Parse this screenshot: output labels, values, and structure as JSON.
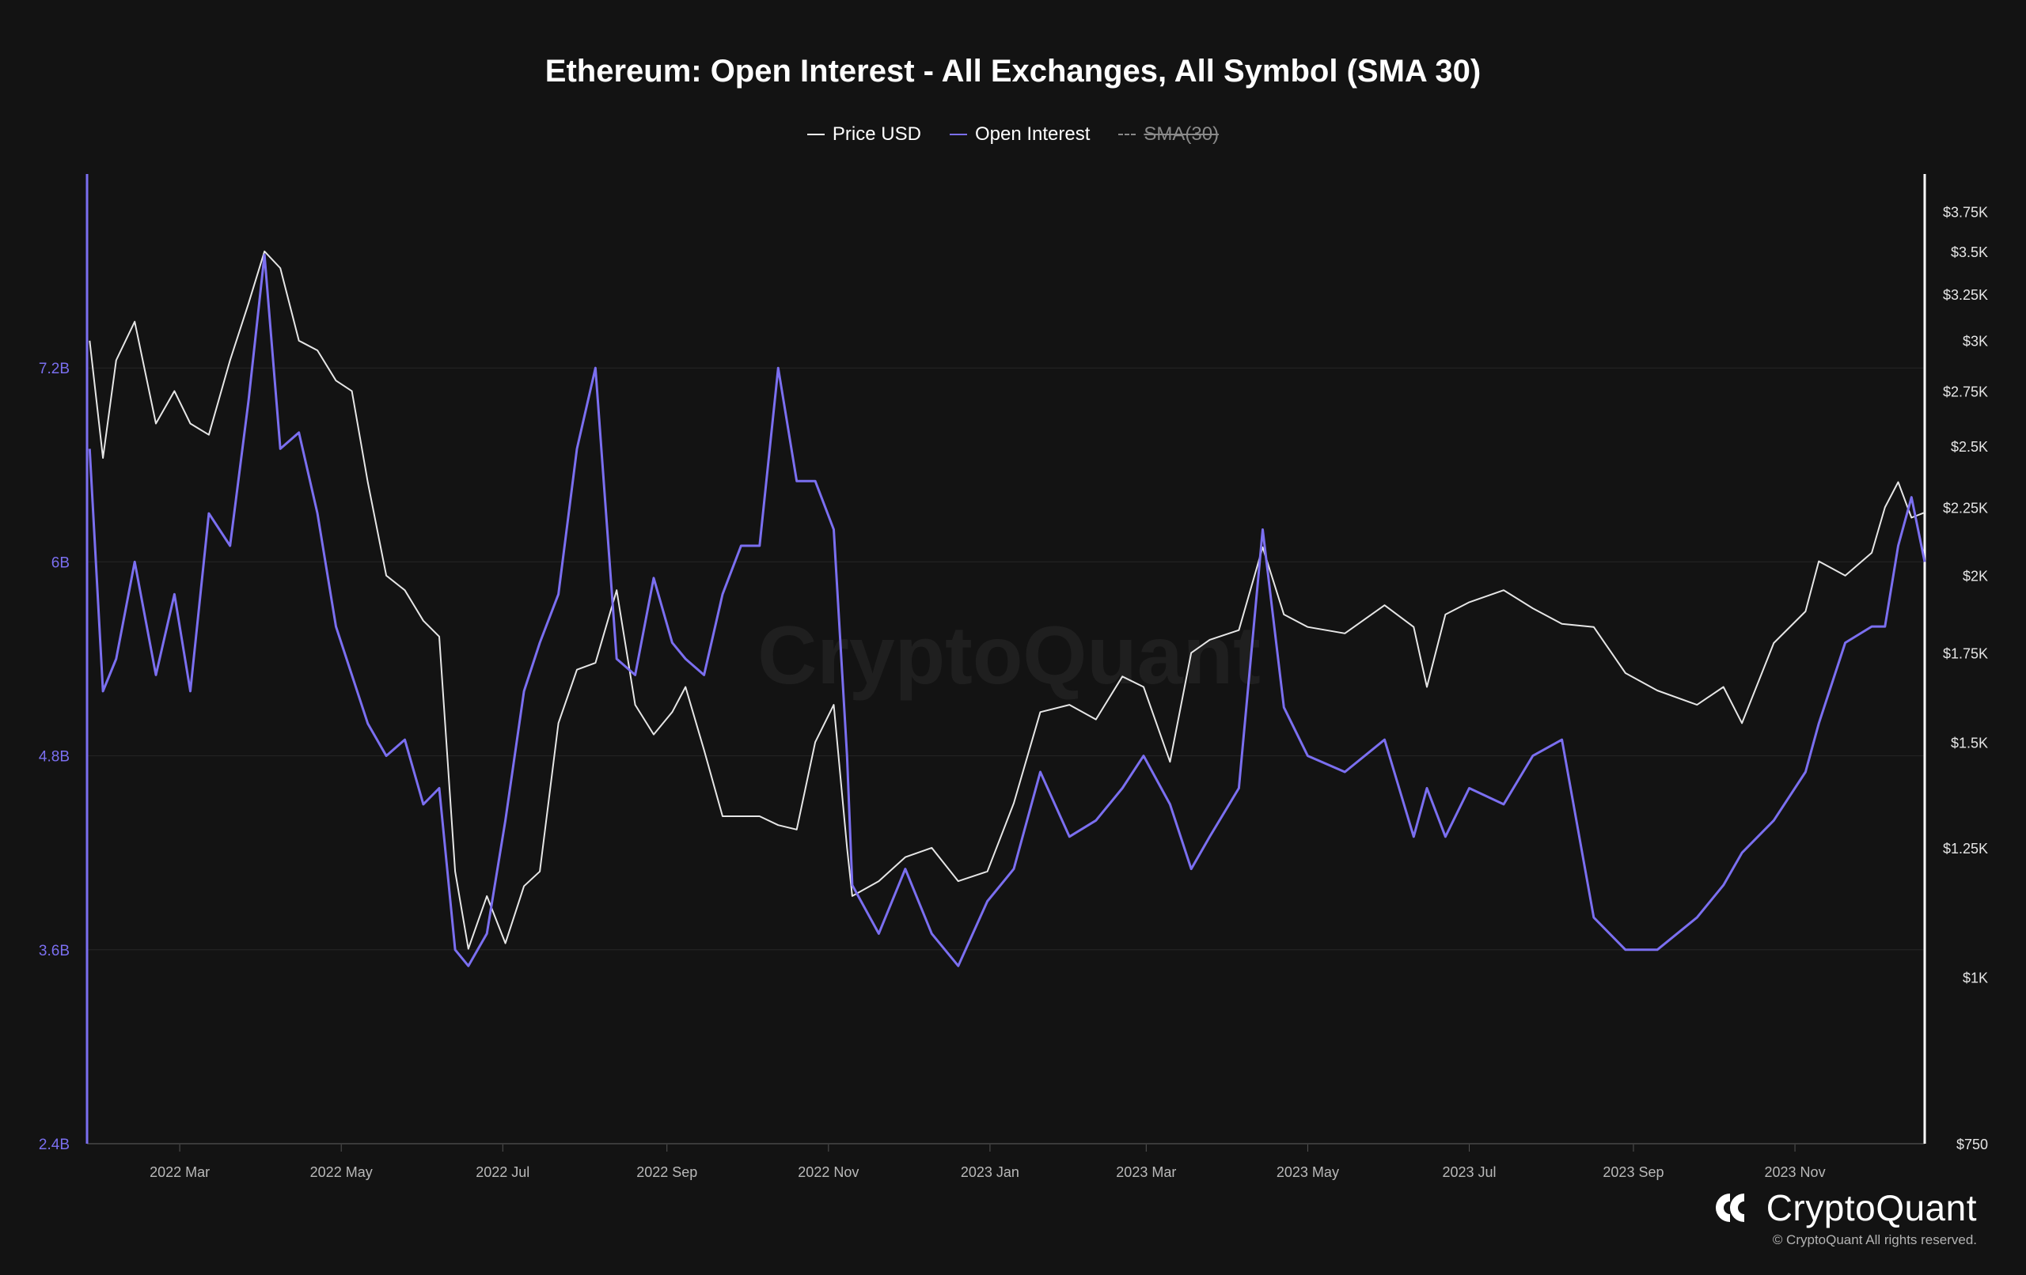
{
  "chart_data": {
    "type": "line",
    "title": "Ethereum: Open Interest - All Exchanges, All Symbol (SMA 30)",
    "legend": [
      {
        "label": "Price USD",
        "color": "#e6e6e6",
        "enabled": true
      },
      {
        "label": "Open Interest",
        "color": "#7b6ff0",
        "enabled": true
      },
      {
        "label": "SMA(30)",
        "color": "#8a8a8a",
        "enabled": false
      }
    ],
    "legend_position": "top-center",
    "x_range": [
      "2022-01-25",
      "2023-12-20"
    ],
    "x_ticks": [
      {
        "date": "2022-03-01",
        "label": "2022 Mar"
      },
      {
        "date": "2022-05-01",
        "label": "2022 May"
      },
      {
        "date": "2022-07-01",
        "label": "2022 Jul"
      },
      {
        "date": "2022-09-01",
        "label": "2022 Sep"
      },
      {
        "date": "2022-11-01",
        "label": "2022 Nov"
      },
      {
        "date": "2023-01-01",
        "label": "2023 Jan"
      },
      {
        "date": "2023-03-01",
        "label": "2023 Mar"
      },
      {
        "date": "2023-05-01",
        "label": "2023 May"
      },
      {
        "date": "2023-07-01",
        "label": "2023 Jul"
      },
      {
        "date": "2023-09-01",
        "label": "2023 Sep"
      },
      {
        "date": "2023-11-01",
        "label": "2023 Nov"
      }
    ],
    "y_left": {
      "scale": "linear",
      "min": 2.4,
      "max": 8.4,
      "unit": "B",
      "ticks": [
        {
          "value": 2.4,
          "label": "2.4B"
        },
        {
          "value": 3.6,
          "label": "3.6B"
        },
        {
          "value": 4.8,
          "label": "4.8B"
        },
        {
          "value": 6.0,
          "label": "6B"
        },
        {
          "value": 7.2,
          "label": "7.2B"
        }
      ]
    },
    "y_right": {
      "scale": "log",
      "min": 750,
      "max": 4000,
      "ticks": [
        {
          "value": 750,
          "label": "$750"
        },
        {
          "value": 1000,
          "label": "$1K"
        },
        {
          "value": 1250,
          "label": "$1.25K"
        },
        {
          "value": 1500,
          "label": "$1.5K"
        },
        {
          "value": 1750,
          "label": "$1.75K"
        },
        {
          "value": 2000,
          "label": "$2K"
        },
        {
          "value": 2250,
          "label": "$2.25K"
        },
        {
          "value": 2500,
          "label": "$2.5K"
        },
        {
          "value": 2750,
          "label": "$2.75K"
        },
        {
          "value": 3000,
          "label": "$3K"
        },
        {
          "value": 3250,
          "label": "$3.25K"
        },
        {
          "value": 3500,
          "label": "$3.5K"
        },
        {
          "value": 3750,
          "label": "$3.75K"
        }
      ]
    },
    "grid": true,
    "series": [
      {
        "name": "Price USD",
        "axis": "right",
        "color": "#e6e6e6",
        "x": [
          "2022-01-26",
          "2022-01-31",
          "2022-02-05",
          "2022-02-12",
          "2022-02-20",
          "2022-02-27",
          "2022-03-05",
          "2022-03-12",
          "2022-03-20",
          "2022-03-27",
          "2022-04-02",
          "2022-04-08",
          "2022-04-15",
          "2022-04-22",
          "2022-04-29",
          "2022-05-05",
          "2022-05-11",
          "2022-05-18",
          "2022-05-25",
          "2022-06-01",
          "2022-06-07",
          "2022-06-13",
          "2022-06-18",
          "2022-06-25",
          "2022-07-02",
          "2022-07-09",
          "2022-07-15",
          "2022-07-22",
          "2022-07-29",
          "2022-08-05",
          "2022-08-13",
          "2022-08-20",
          "2022-08-27",
          "2022-09-03",
          "2022-09-08",
          "2022-09-15",
          "2022-09-22",
          "2022-09-29",
          "2022-10-06",
          "2022-10-13",
          "2022-10-20",
          "2022-10-27",
          "2022-11-03",
          "2022-11-08",
          "2022-11-10",
          "2022-11-20",
          "2022-11-30",
          "2022-12-10",
          "2022-12-20",
          "2022-12-31",
          "2023-01-10",
          "2023-01-20",
          "2023-01-31",
          "2023-02-10",
          "2023-02-20",
          "2023-02-28",
          "2023-03-10",
          "2023-03-18",
          "2023-03-25",
          "2023-04-05",
          "2023-04-14",
          "2023-04-22",
          "2023-05-01",
          "2023-05-15",
          "2023-05-30",
          "2023-06-10",
          "2023-06-15",
          "2023-06-22",
          "2023-07-01",
          "2023-07-14",
          "2023-07-25",
          "2023-08-05",
          "2023-08-17",
          "2023-08-29",
          "2023-09-10",
          "2023-09-25",
          "2023-10-05",
          "2023-10-12",
          "2023-10-24",
          "2023-11-05",
          "2023-11-10",
          "2023-11-20",
          "2023-11-30",
          "2023-12-05",
          "2023-12-10",
          "2023-12-15",
          "2023-12-20"
        ],
        "values": [
          3000,
          2450,
          2900,
          3100,
          2600,
          2750,
          2600,
          2550,
          2900,
          3200,
          3500,
          3400,
          3000,
          2950,
          2800,
          2750,
          2350,
          2000,
          1950,
          1850,
          1800,
          1200,
          1050,
          1150,
          1060,
          1170,
          1200,
          1550,
          1700,
          1720,
          1950,
          1600,
          1520,
          1580,
          1650,
          1480,
          1320,
          1320,
          1320,
          1300,
          1290,
          1500,
          1600,
          1250,
          1150,
          1180,
          1230,
          1250,
          1180,
          1200,
          1350,
          1580,
          1600,
          1560,
          1680,
          1650,
          1450,
          1750,
          1790,
          1820,
          2100,
          1870,
          1830,
          1810,
          1900,
          1830,
          1650,
          1870,
          1910,
          1950,
          1890,
          1840,
          1830,
          1690,
          1640,
          1600,
          1650,
          1550,
          1780,
          1880,
          2050,
          2000,
          2080,
          2250,
          2350,
          2210,
          2230
        ]
      },
      {
        "name": "Open Interest",
        "axis": "left",
        "color": "#7b6ff0",
        "x": [
          "2022-01-26",
          "2022-01-31",
          "2022-02-05",
          "2022-02-12",
          "2022-02-20",
          "2022-02-27",
          "2022-03-05",
          "2022-03-12",
          "2022-03-20",
          "2022-03-27",
          "2022-04-02",
          "2022-04-08",
          "2022-04-15",
          "2022-04-22",
          "2022-04-29",
          "2022-05-05",
          "2022-05-11",
          "2022-05-18",
          "2022-05-25",
          "2022-06-01",
          "2022-06-07",
          "2022-06-13",
          "2022-06-18",
          "2022-06-25",
          "2022-07-02",
          "2022-07-09",
          "2022-07-15",
          "2022-07-22",
          "2022-07-29",
          "2022-08-05",
          "2022-08-13",
          "2022-08-20",
          "2022-08-27",
          "2022-09-03",
          "2022-09-08",
          "2022-09-15",
          "2022-09-22",
          "2022-09-29",
          "2022-10-06",
          "2022-10-13",
          "2022-10-20",
          "2022-10-27",
          "2022-11-03",
          "2022-11-08",
          "2022-11-10",
          "2022-11-20",
          "2022-11-30",
          "2022-12-10",
          "2022-12-20",
          "2022-12-31",
          "2023-01-10",
          "2023-01-20",
          "2023-01-31",
          "2023-02-10",
          "2023-02-20",
          "2023-02-28",
          "2023-03-10",
          "2023-03-18",
          "2023-03-25",
          "2023-04-05",
          "2023-04-14",
          "2023-04-22",
          "2023-05-01",
          "2023-05-15",
          "2023-05-30",
          "2023-06-10",
          "2023-06-15",
          "2023-06-22",
          "2023-07-01",
          "2023-07-14",
          "2023-07-25",
          "2023-08-05",
          "2023-08-17",
          "2023-08-29",
          "2023-09-10",
          "2023-09-25",
          "2023-10-05",
          "2023-10-12",
          "2023-10-24",
          "2023-11-05",
          "2023-11-10",
          "2023-11-20",
          "2023-11-30",
          "2023-12-05",
          "2023-12-10",
          "2023-12-15",
          "2023-12-20"
        ],
        "values": [
          6.7,
          5.2,
          5.4,
          6.0,
          5.3,
          5.8,
          5.2,
          6.3,
          6.1,
          7.0,
          7.9,
          6.7,
          6.8,
          6.3,
          5.6,
          5.3,
          5.0,
          4.8,
          4.9,
          4.5,
          4.6,
          3.6,
          3.5,
          3.7,
          4.4,
          5.2,
          5.5,
          5.8,
          6.7,
          7.2,
          5.4,
          5.3,
          5.9,
          5.5,
          5.4,
          5.3,
          5.8,
          6.1,
          6.1,
          7.2,
          6.5,
          6.5,
          6.2,
          4.8,
          4.0,
          3.7,
          4.1,
          3.7,
          3.5,
          3.9,
          4.1,
          4.7,
          4.3,
          4.4,
          4.6,
          4.8,
          4.5,
          4.1,
          4.3,
          4.6,
          6.2,
          5.1,
          4.8,
          4.7,
          4.9,
          4.3,
          4.6,
          4.3,
          4.6,
          4.5,
          4.8,
          4.9,
          3.8,
          3.6,
          3.6,
          3.8,
          4.0,
          4.2,
          4.4,
          4.7,
          5.0,
          5.5,
          5.6,
          5.6,
          6.1,
          6.4,
          6.0
        ]
      }
    ]
  },
  "brand": {
    "name": "CryptoQuant",
    "copyright": "© CryptoQuant All rights reserved."
  },
  "watermark": "CryptoQuant"
}
